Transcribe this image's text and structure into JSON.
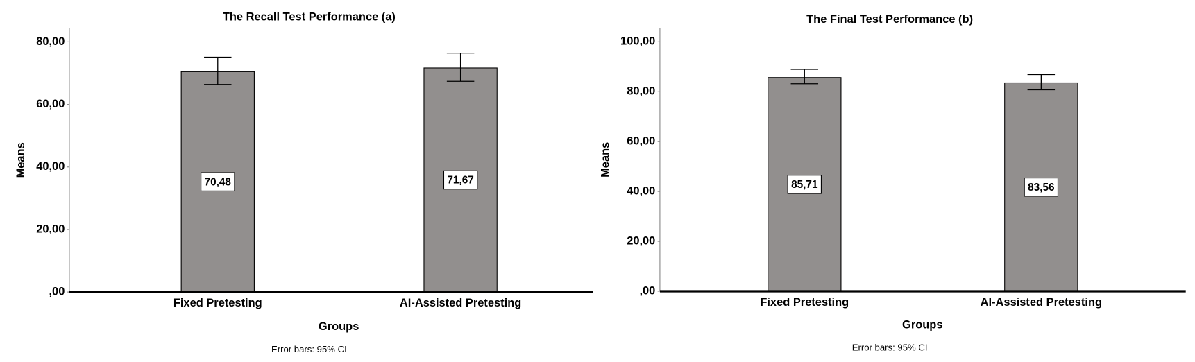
{
  "chart_data": [
    {
      "type": "bar",
      "title": "The Recall Test Performance (a)",
      "x_label": "Groups",
      "y_label": "Means",
      "note": "Error bars: 95% CI",
      "categories": [
        "Fixed Pretesting",
        "AI-Assisted Pretesting"
      ],
      "values": [
        70.48,
        71.67
      ],
      "value_labels": [
        "70,48",
        "71,67"
      ],
      "ci_lower": [
        66.4,
        67.4
      ],
      "ci_upper": [
        75.1,
        76.4
      ],
      "color": "#928f8e",
      "ylim": [
        0,
        84.4
      ],
      "yticks": [
        {
          "value": 0,
          "label": ",00"
        },
        {
          "value": 20,
          "label": "20,00"
        },
        {
          "value": 40,
          "label": "40,00"
        },
        {
          "value": 60,
          "label": "60,00"
        },
        {
          "value": 80,
          "label": "80,00"
        }
      ]
    },
    {
      "type": "bar",
      "title": "The Final Test Performance (b)",
      "x_label": "Groups",
      "y_label": "Means",
      "note": "Error bars: 95% CI",
      "categories": [
        "Fixed Pretesting",
        "AI-Assisted Pretesting"
      ],
      "values": [
        85.71,
        83.56
      ],
      "value_labels": [
        "85,71",
        "83,56"
      ],
      "ci_lower": [
        83.2,
        80.8
      ],
      "ci_upper": [
        89.0,
        86.9
      ],
      "color": "#928f8e",
      "ylim": [
        0,
        105.5
      ],
      "yticks": [
        {
          "value": 0,
          "label": ",00"
        },
        {
          "value": 20,
          "label": "20,00"
        },
        {
          "value": 40,
          "label": "40,00"
        },
        {
          "value": 60,
          "label": "60,00"
        },
        {
          "value": 80,
          "label": "80,00"
        },
        {
          "value": 100,
          "label": "100,00"
        }
      ]
    }
  ]
}
